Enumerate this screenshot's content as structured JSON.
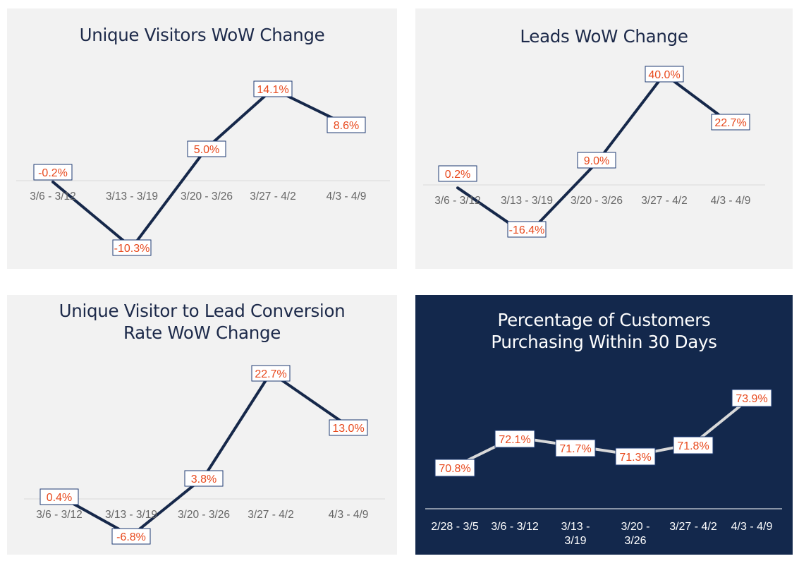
{
  "charts": [
    {
      "title": "Unique Visitors WoW Change",
      "chart_data": {
        "type": "line",
        "title": "Unique Visitors WoW Change",
        "categories": [
          "3/6 - 3/12",
          "3/13 - 3/19",
          "3/20 - 3/26",
          "3/27 - 4/2",
          "4/3 - 4/9"
        ],
        "values": [
          -0.2,
          -10.3,
          5.0,
          14.1,
          8.6
        ],
        "labels": [
          "-0.2%",
          "-10.3%",
          "5.0%",
          "14.1%",
          "8.6%"
        ],
        "grid": false
      }
    },
    {
      "title": "Leads WoW Change",
      "chart_data": {
        "type": "line",
        "title": "Leads WoW Change",
        "categories": [
          "3/6 - 3/12",
          "3/13 - 3/19",
          "3/20 - 3/26",
          "3/27 - 4/2",
          "4/3 - 4/9"
        ],
        "values": [
          0.2,
          -16.4,
          9.0,
          40.0,
          22.7
        ],
        "labels": [
          "0.2%",
          "-16.4%",
          "9.0%",
          "40.0%",
          "22.7%"
        ],
        "grid": false
      }
    },
    {
      "title_lines": [
        "Unique Visitor to Lead Conversion",
        "Rate WoW Change"
      ],
      "chart_data": {
        "type": "line",
        "title": "Unique Visitor to Lead Conversion Rate WoW Change",
        "categories": [
          "3/6 - 3/12",
          "3/13 - 3/19",
          "3/20 - 3/26",
          "3/27 - 4/2",
          "4/3 - 4/9"
        ],
        "values": [
          0.4,
          -6.8,
          3.8,
          22.7,
          13.0
        ],
        "labels": [
          "0.4%",
          "-6.8%",
          "3.8%",
          "22.7%",
          "13.0%"
        ],
        "grid": false
      }
    },
    {
      "title_lines": [
        "Percentage of Customers",
        "Purchasing Within 30 Days"
      ],
      "chart_data": {
        "type": "line",
        "title": "Percentage of Customers Purchasing Within 30 Days",
        "categories": [
          "2/28 - 3/5",
          "3/6 - 3/12",
          "3/13 - 3/19",
          "3/20 - 3/26",
          "3/27 - 4/2",
          "4/3 - 4/9"
        ],
        "category_lines": [
          [
            "2/28 - 3/5"
          ],
          [
            "3/6 - 3/12"
          ],
          [
            "3/13 -",
            "3/19"
          ],
          [
            "3/20 -",
            "3/26"
          ],
          [
            "3/27 - 4/2"
          ],
          [
            "4/3 - 4/9"
          ]
        ],
        "values": [
          70.8,
          72.1,
          71.7,
          71.3,
          71.8,
          73.9
        ],
        "labels": [
          "70.8%",
          "72.1%",
          "71.7%",
          "71.3%",
          "71.8%",
          "73.9%"
        ],
        "grid": false
      }
    }
  ],
  "colors": {
    "panel_light": "#f2f2f2",
    "panel_dark": "#13284c",
    "line_light": "#16284a",
    "line_dark": "#d9d9d9",
    "label_text": "#e8491d",
    "label_border": "#1f3b73",
    "tick_light": "#666666",
    "tick_dark": "#ffffff",
    "axis_light": "#d9d9d9",
    "axis_dark": "#ffffff"
  }
}
